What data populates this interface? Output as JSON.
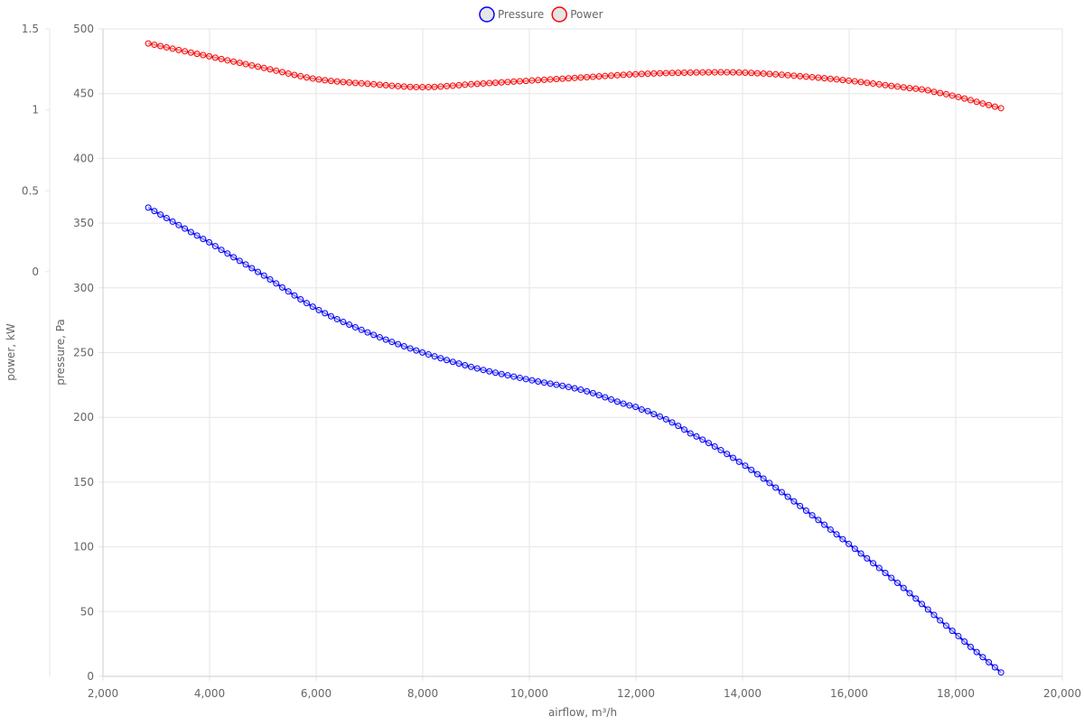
{
  "chart_data": {
    "type": "line",
    "legend_position": "top-center",
    "grid": true,
    "colors": {
      "pressure": "#0000ff",
      "power": "#ff0000",
      "grid": "#e6e6e6",
      "axis": "#cccccc",
      "marker_fill": "#e6e6e6"
    },
    "x_axis": {
      "label": "airflow, m³/h",
      "min": 2000,
      "max": 20000,
      "ticks": [
        2000,
        4000,
        6000,
        8000,
        10000,
        12000,
        14000,
        16000,
        18000,
        20000
      ],
      "tick_labels": [
        "2,000",
        "4,000",
        "6,000",
        "8,000",
        "10,000",
        "12,000",
        "14,000",
        "16,000",
        "18,000",
        "20,000"
      ]
    },
    "y_axis_pressure": {
      "label": "pressure, Pa",
      "min": 0,
      "max": 500,
      "ticks": [
        0,
        50,
        100,
        150,
        200,
        250,
        300,
        350,
        400,
        450,
        500
      ],
      "tick_labels": [
        "0",
        "50",
        "100",
        "150",
        "200",
        "250",
        "300",
        "350",
        "400",
        "450",
        "500"
      ]
    },
    "y_axis_power": {
      "label": "power, kW",
      "min": -2.5,
      "max": 1.5,
      "ticks": [
        0,
        0.5,
        1,
        1.5
      ],
      "tick_labels": [
        "0",
        "0.5",
        "1",
        "1.5"
      ]
    },
    "series": [
      {
        "name": "Pressure",
        "axis": "pressure",
        "key_x": [
          2850,
          4000,
          5000,
          6000,
          7000,
          8000,
          9000,
          10000,
          11000,
          12000,
          12300,
          13000,
          14000,
          15000,
          16000,
          17000,
          18000,
          18850
        ],
        "key_y": [
          362,
          335,
          310,
          284,
          265,
          250,
          238,
          229,
          221,
          208,
          203,
          188,
          164,
          134,
          102,
          69,
          33,
          3
        ]
      },
      {
        "name": "Power",
        "axis": "power",
        "key_x": [
          2850,
          4000,
          5000,
          6000,
          7000,
          8000,
          9000,
          10000,
          11000,
          12000,
          13000,
          14000,
          15000,
          16000,
          17000,
          17600,
          18850
        ],
        "key_y": [
          1.41,
          1.33,
          1.26,
          1.19,
          1.16,
          1.14,
          1.16,
          1.18,
          1.2,
          1.22,
          1.23,
          1.23,
          1.21,
          1.18,
          1.14,
          1.11,
          1.01
        ],
        "note": ""
      }
    ]
  }
}
